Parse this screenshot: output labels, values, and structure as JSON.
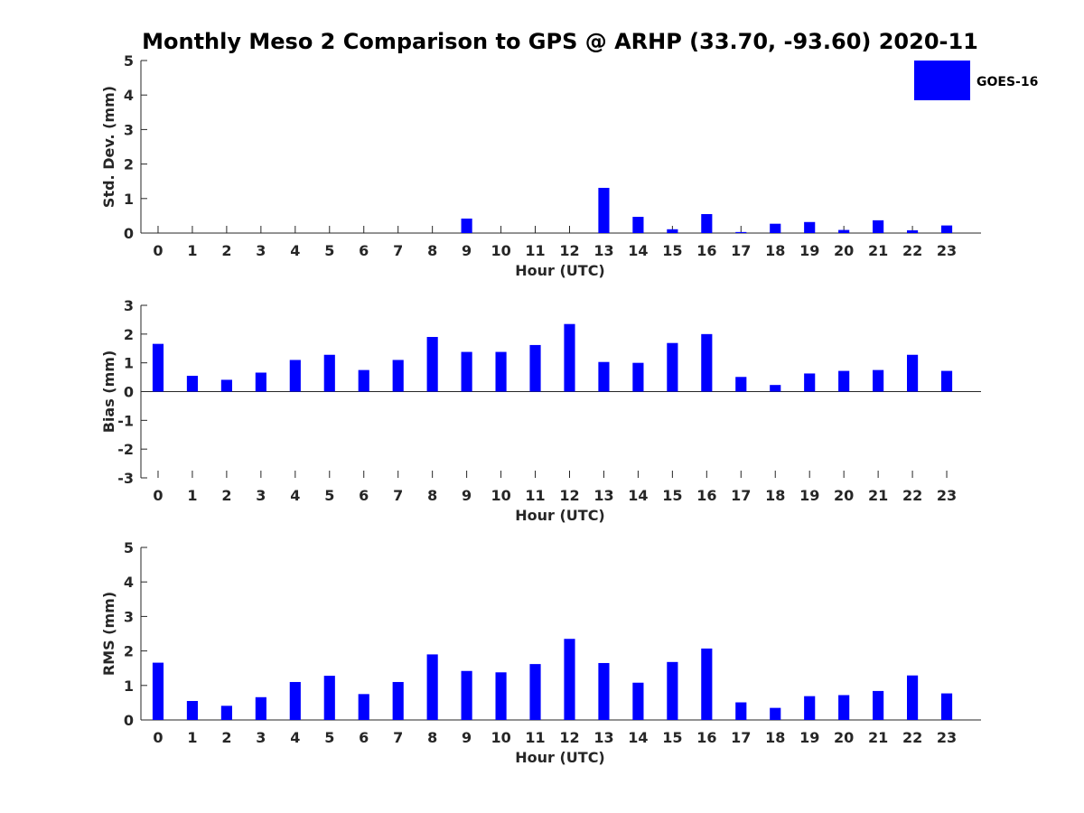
{
  "chart_data": {
    "title": "Monthly Meso 2 Comparison to GPS @ ARHP (33.70, -93.60) 2020-11",
    "legend": {
      "label": "GOES-16",
      "placement": "top-right",
      "color": "#0000ff"
    },
    "bar_color": "#0000ff",
    "panels": [
      {
        "type": "bar",
        "ylabel": "Std. Dev. (mm)",
        "xlabel": "Hour (UTC)",
        "ylim": [
          0,
          5
        ],
        "yticks": [
          0,
          1,
          2,
          3,
          4,
          5
        ],
        "categories": [
          "0",
          "1",
          "2",
          "3",
          "4",
          "5",
          "6",
          "7",
          "8",
          "9",
          "10",
          "11",
          "12",
          "13",
          "14",
          "15",
          "16",
          "17",
          "18",
          "19",
          "20",
          "21",
          "22",
          "23"
        ],
        "values": [
          0,
          0,
          0,
          0,
          0,
          0,
          0,
          0,
          0,
          0.42,
          0,
          0,
          0,
          1.31,
          0.47,
          0.11,
          0.55,
          0.03,
          0.27,
          0.32,
          0.09,
          0.37,
          0.08,
          0.22
        ]
      },
      {
        "type": "bar",
        "ylabel": "Bias (mm)",
        "xlabel": "Hour (UTC)",
        "ylim": [
          -3,
          3
        ],
        "yticks": [
          -3,
          -2,
          -1,
          0,
          1,
          2,
          3
        ],
        "categories": [
          "0",
          "1",
          "2",
          "3",
          "4",
          "5",
          "6",
          "7",
          "8",
          "9",
          "10",
          "11",
          "12",
          "13",
          "14",
          "15",
          "16",
          "17",
          "18",
          "19",
          "20",
          "21",
          "22",
          "23"
        ],
        "values": [
          1.66,
          0.55,
          0.41,
          0.66,
          1.1,
          1.28,
          0.75,
          1.1,
          1.9,
          1.38,
          1.38,
          1.62,
          2.35,
          1.03,
          1.0,
          1.69,
          2.0,
          0.51,
          0.23,
          0.63,
          0.72,
          0.75,
          1.28,
          0.72
        ]
      },
      {
        "type": "bar",
        "ylabel": "RMS (mm)",
        "xlabel": "Hour (UTC)",
        "ylim": [
          0,
          5
        ],
        "yticks": [
          0,
          1,
          2,
          3,
          4,
          5
        ],
        "categories": [
          "0",
          "1",
          "2",
          "3",
          "4",
          "5",
          "6",
          "7",
          "8",
          "9",
          "10",
          "11",
          "12",
          "13",
          "14",
          "15",
          "16",
          "17",
          "18",
          "19",
          "20",
          "21",
          "22",
          "23"
        ],
        "values": [
          1.66,
          0.55,
          0.41,
          0.66,
          1.1,
          1.28,
          0.75,
          1.1,
          1.9,
          1.42,
          1.38,
          1.62,
          2.35,
          1.65,
          1.08,
          1.68,
          2.07,
          0.51,
          0.35,
          0.69,
          0.72,
          0.84,
          1.29,
          0.77
        ]
      }
    ]
  }
}
